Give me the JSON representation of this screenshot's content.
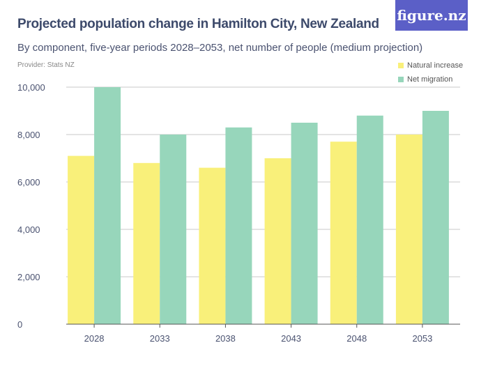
{
  "title": "Projected population change in Hamilton City, New Zealand",
  "subtitle": "By component, five-year periods 2028–2053, net number of people (medium projection)",
  "provider": "Provider: Stats NZ",
  "logo": "figure.nz",
  "colors": {
    "natural": "#f9f07a",
    "migration": "#97d6bb",
    "logo_bg": "#5b5fc7"
  },
  "chart_data": {
    "type": "bar",
    "title": "Projected population change in Hamilton City, New Zealand",
    "categories": [
      "2028",
      "2033",
      "2038",
      "2043",
      "2048",
      "2053"
    ],
    "series": [
      {
        "name": "Natural increase",
        "values": [
          7100,
          6800,
          6600,
          7000,
          7700,
          8000
        ]
      },
      {
        "name": "Net migration",
        "values": [
          10000,
          8000,
          8300,
          8500,
          8800,
          9000
        ]
      }
    ],
    "ylim": [
      0,
      10000
    ],
    "yticks": [
      0,
      2000,
      4000,
      6000,
      8000,
      10000
    ],
    "ytick_labels": [
      "0",
      "2,000",
      "4,000",
      "6,000",
      "8,000",
      "10,000"
    ],
    "grid": true,
    "legend": "top-right"
  }
}
